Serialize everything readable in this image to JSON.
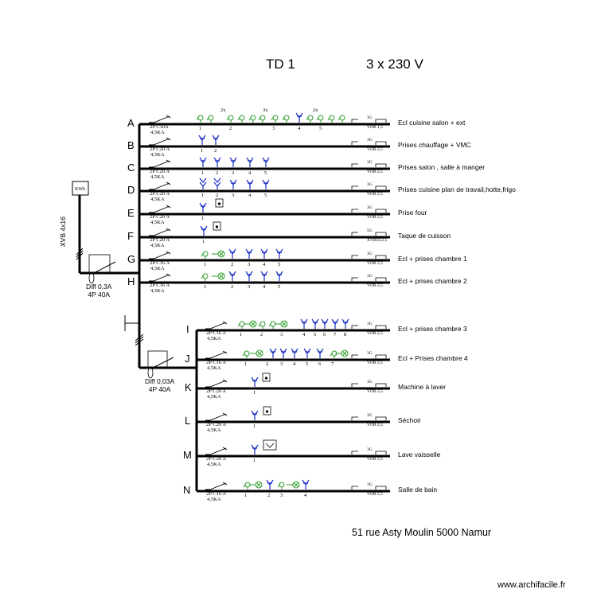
{
  "title": "TD 1",
  "voltage": "3 x 230 V",
  "address": "51 rue Asty Moulin  5000 Namur",
  "watermark": "www.archifacile.fr",
  "meter_label": "KWh",
  "supply_cable": "XVB 4x16",
  "main_diff": {
    "l1": "Diff 0,3A",
    "l2": "4P  40A"
  },
  "sub_diff": {
    "l1": "Diff 0,03A",
    "l2": "4P  40A"
  },
  "colors": {
    "light": "#2e9e2e",
    "socket": "#1a2fc4",
    "line": "#000000"
  },
  "circuits": [
    {
      "id": "A",
      "desc": "Ecl cuisine salon + ext",
      "breaker": "2P C10A",
      "ka": "4,5KA",
      "cable_top": "3G",
      "cable": "VOB 1,5",
      "points": [
        "1",
        "2",
        "3",
        "4",
        "5"
      ],
      "mult": [
        "2x",
        "3x",
        "2x"
      ]
    },
    {
      "id": "B",
      "desc": "Prises chauffage + VMC",
      "breaker": "2P C20 A",
      "ka": "4,5KA",
      "cable_top": "3G",
      "cable": "VOB 2,5",
      "points": [
        "1",
        "2"
      ]
    },
    {
      "id": "C",
      "desc": "Prises salon , salle à manger",
      "breaker": "2P C20 A",
      "ka": "4,5KA",
      "cable_top": "3G",
      "cable": "VOB 2,5",
      "points": [
        "1",
        "2",
        "3",
        "4",
        "5"
      ]
    },
    {
      "id": "D",
      "desc": "Prises  cuisine plan de travail,hotte,frigo",
      "breaker": "2P C20 A",
      "ka": "4,5KA",
      "cable_top": "3G",
      "cable": "VOB 2,5",
      "points": [
        "1",
        "2",
        "3",
        "4",
        "5"
      ]
    },
    {
      "id": "E",
      "desc": "Prise  four",
      "breaker": "2P C20 A",
      "ka": "4,5KA",
      "cable_top": "3G",
      "cable": "VOB 2,5",
      "points": [
        "1"
      ]
    },
    {
      "id": "F",
      "desc": "Taque de cuisson",
      "breaker": "2P C20 A",
      "ka": "4,5KA",
      "cable_top": "5G",
      "cable": "XVB5G2,5",
      "points": [
        "1"
      ]
    },
    {
      "id": "G",
      "desc": "Ecl + prises chambre 1",
      "breaker": "2P C16 A",
      "ka": "4,5KA",
      "cable_top": "3G",
      "cable": "VOB 2,5",
      "points": [
        "1",
        "2",
        "3",
        "4",
        "5"
      ]
    },
    {
      "id": "H",
      "desc": "Ecl + prises chambre 2",
      "breaker": "2P C16 A",
      "ka": "4,5KA",
      "cable_top": "3G",
      "cable": "VOB 2,5",
      "points": [
        "1",
        "2",
        "3",
        "4",
        "5"
      ]
    },
    {
      "id": "I",
      "desc": "Ecl + prises chambre 3",
      "breaker": "2P C16 A",
      "ka": "4,5KA",
      "cable_top": "3G",
      "cable": "VOB 2,5",
      "points": [
        "1",
        "2",
        "3",
        "4",
        "5",
        "6",
        "7",
        "8"
      ]
    },
    {
      "id": "J",
      "desc": "Ecl + Prises chambre 4",
      "breaker": "2P C16 A",
      "ka": "4,5KA",
      "cable_top": "3G",
      "cable": "VOB 2,5",
      "points": [
        "1",
        "2",
        "3",
        "4",
        "5",
        "6",
        "7"
      ]
    },
    {
      "id": "K",
      "desc": "Machine à laver",
      "breaker": "2P C20 A",
      "ka": "4,5KA",
      "cable_top": "3G",
      "cable": "VOB 2,5",
      "points": [
        "1"
      ]
    },
    {
      "id": "L",
      "desc": "Séchoir",
      "breaker": "2P C20 A",
      "ka": "4,5KA",
      "cable_top": "3G",
      "cable": "VOB 2,5",
      "points": [
        "1"
      ]
    },
    {
      "id": "M",
      "desc": "Lave vaisselle",
      "breaker": "2P C20 A",
      "ka": "4,5KA",
      "cable_top": "3G",
      "cable": "VOB 2,5",
      "points": [
        "1"
      ]
    },
    {
      "id": "N",
      "desc": "Salle de bain",
      "breaker": "2P C16 A",
      "ka": "4,5KA",
      "cable_top": "3G",
      "cable": "VOB 2,5",
      "points": [
        "1",
        "2",
        "3",
        "4"
      ]
    }
  ]
}
